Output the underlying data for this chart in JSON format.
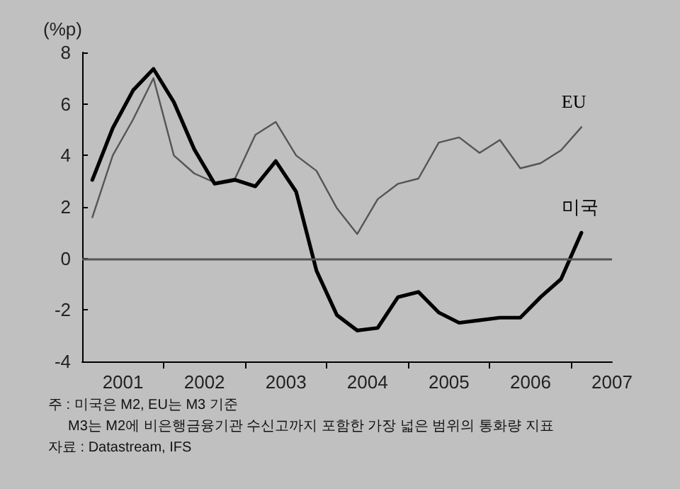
{
  "chart_data": {
    "type": "line",
    "ylabel": "(%p)",
    "x": [
      2000.625,
      2000.875,
      2001.125,
      2001.375,
      2001.625,
      2001.875,
      2002.125,
      2002.375,
      2002.625,
      2002.875,
      2003.125,
      2003.375,
      2003.625,
      2003.875,
      2004.125,
      2004.375,
      2004.625,
      2004.875,
      2005.125,
      2005.375,
      2005.625,
      2005.875,
      2006.125,
      2006.375,
      2006.625
    ],
    "series": [
      {
        "name": "EU",
        "color": "#555555",
        "values": [
          1.6,
          4.0,
          5.4,
          7.0,
          4.0,
          3.3,
          2.95,
          3.1,
          4.8,
          5.3,
          4.0,
          3.4,
          1.95,
          0.95,
          2.3,
          2.9,
          3.1,
          4.5,
          4.7,
          4.1,
          4.6,
          3.5,
          3.7,
          4.2,
          5.1
        ]
      },
      {
        "name": "미국",
        "color": "#000000",
        "values": [
          3.05,
          5.06,
          6.53,
          7.36,
          6.07,
          4.24,
          2.9,
          3.05,
          2.8,
          3.78,
          2.59,
          -0.48,
          -2.2,
          -2.8,
          -2.7,
          -1.5,
          -1.3,
          -2.1,
          -2.5,
          -2.4,
          -2.3,
          -2.3,
          -1.5,
          -0.8,
          1.0
        ]
      }
    ],
    "xlim": [
      2000.5,
      2007
    ],
    "xticks": [
      {
        "value": 2001.5,
        "label": null
      },
      {
        "value": 2002.5,
        "label": null
      },
      {
        "value": 2003.5,
        "label": null
      },
      {
        "value": 2004.5,
        "label": null
      },
      {
        "value": 2005.5,
        "label": null
      },
      {
        "value": 2006.5,
        "label": null
      },
      2001,
      2002,
      2003,
      2004,
      2005,
      2006,
      2007
    ],
    "ylim": [
      -4,
      8
    ],
    "yticks": [
      -4,
      -2,
      0,
      2,
      4,
      6,
      8
    ],
    "ref_lines": [
      {
        "axis": "y",
        "value": 0,
        "label": null,
        "color": "#555555"
      }
    ],
    "grid": false,
    "legend": false,
    "marker": "none",
    "line_style": "solid",
    "annotations": [
      "주 : 미국은 M2, EU는 M3 기준",
      "M3는 M2에 비은행금융기관 수신고까지 포함한 가장 넓은 범위의 통화량 지표",
      "자료 : Datastream, IFS"
    ]
  }
}
